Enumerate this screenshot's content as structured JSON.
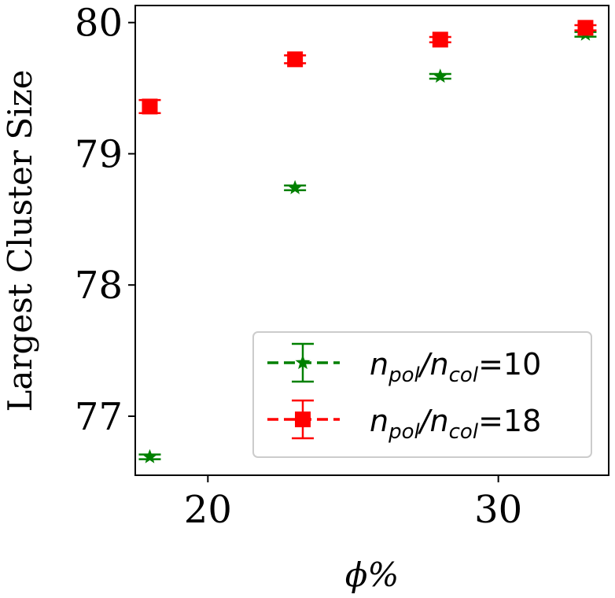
{
  "chart_data": {
    "type": "scatter",
    "xlabel": "ϕ%",
    "ylabel": "Largest Cluster Size",
    "xlim": [
      17.5,
      33.8
    ],
    "ylim": [
      76.55,
      80.13
    ],
    "xticks": [
      20,
      30
    ],
    "xtick_labels": [
      "20",
      "30"
    ],
    "yticks": [
      77,
      78,
      79,
      80
    ],
    "ytick_labels": [
      "77",
      "78",
      "79",
      "80"
    ],
    "legend_position": "lower-right",
    "series": [
      {
        "label_main": "n",
        "label_sub1": "pol",
        "label_mid": "/n",
        "label_sub2": "col",
        "label_tail": "=10",
        "color": "#008000",
        "marker": "star",
        "x": [
          18,
          23,
          28,
          33
        ],
        "y": [
          76.69,
          78.74,
          79.59,
          79.91
        ],
        "err": [
          0.01,
          0.01,
          0.01,
          0.01
        ]
      },
      {
        "label_main": "n",
        "label_sub1": "pol",
        "label_mid": "/n",
        "label_sub2": "col",
        "label_tail": "=18",
        "color": "#ff0000",
        "marker": "square",
        "x": [
          18,
          23,
          28,
          33
        ],
        "y": [
          79.36,
          79.72,
          79.87,
          79.96
        ],
        "err": [
          0.05,
          0.03,
          0.02,
          0.02
        ]
      }
    ]
  }
}
